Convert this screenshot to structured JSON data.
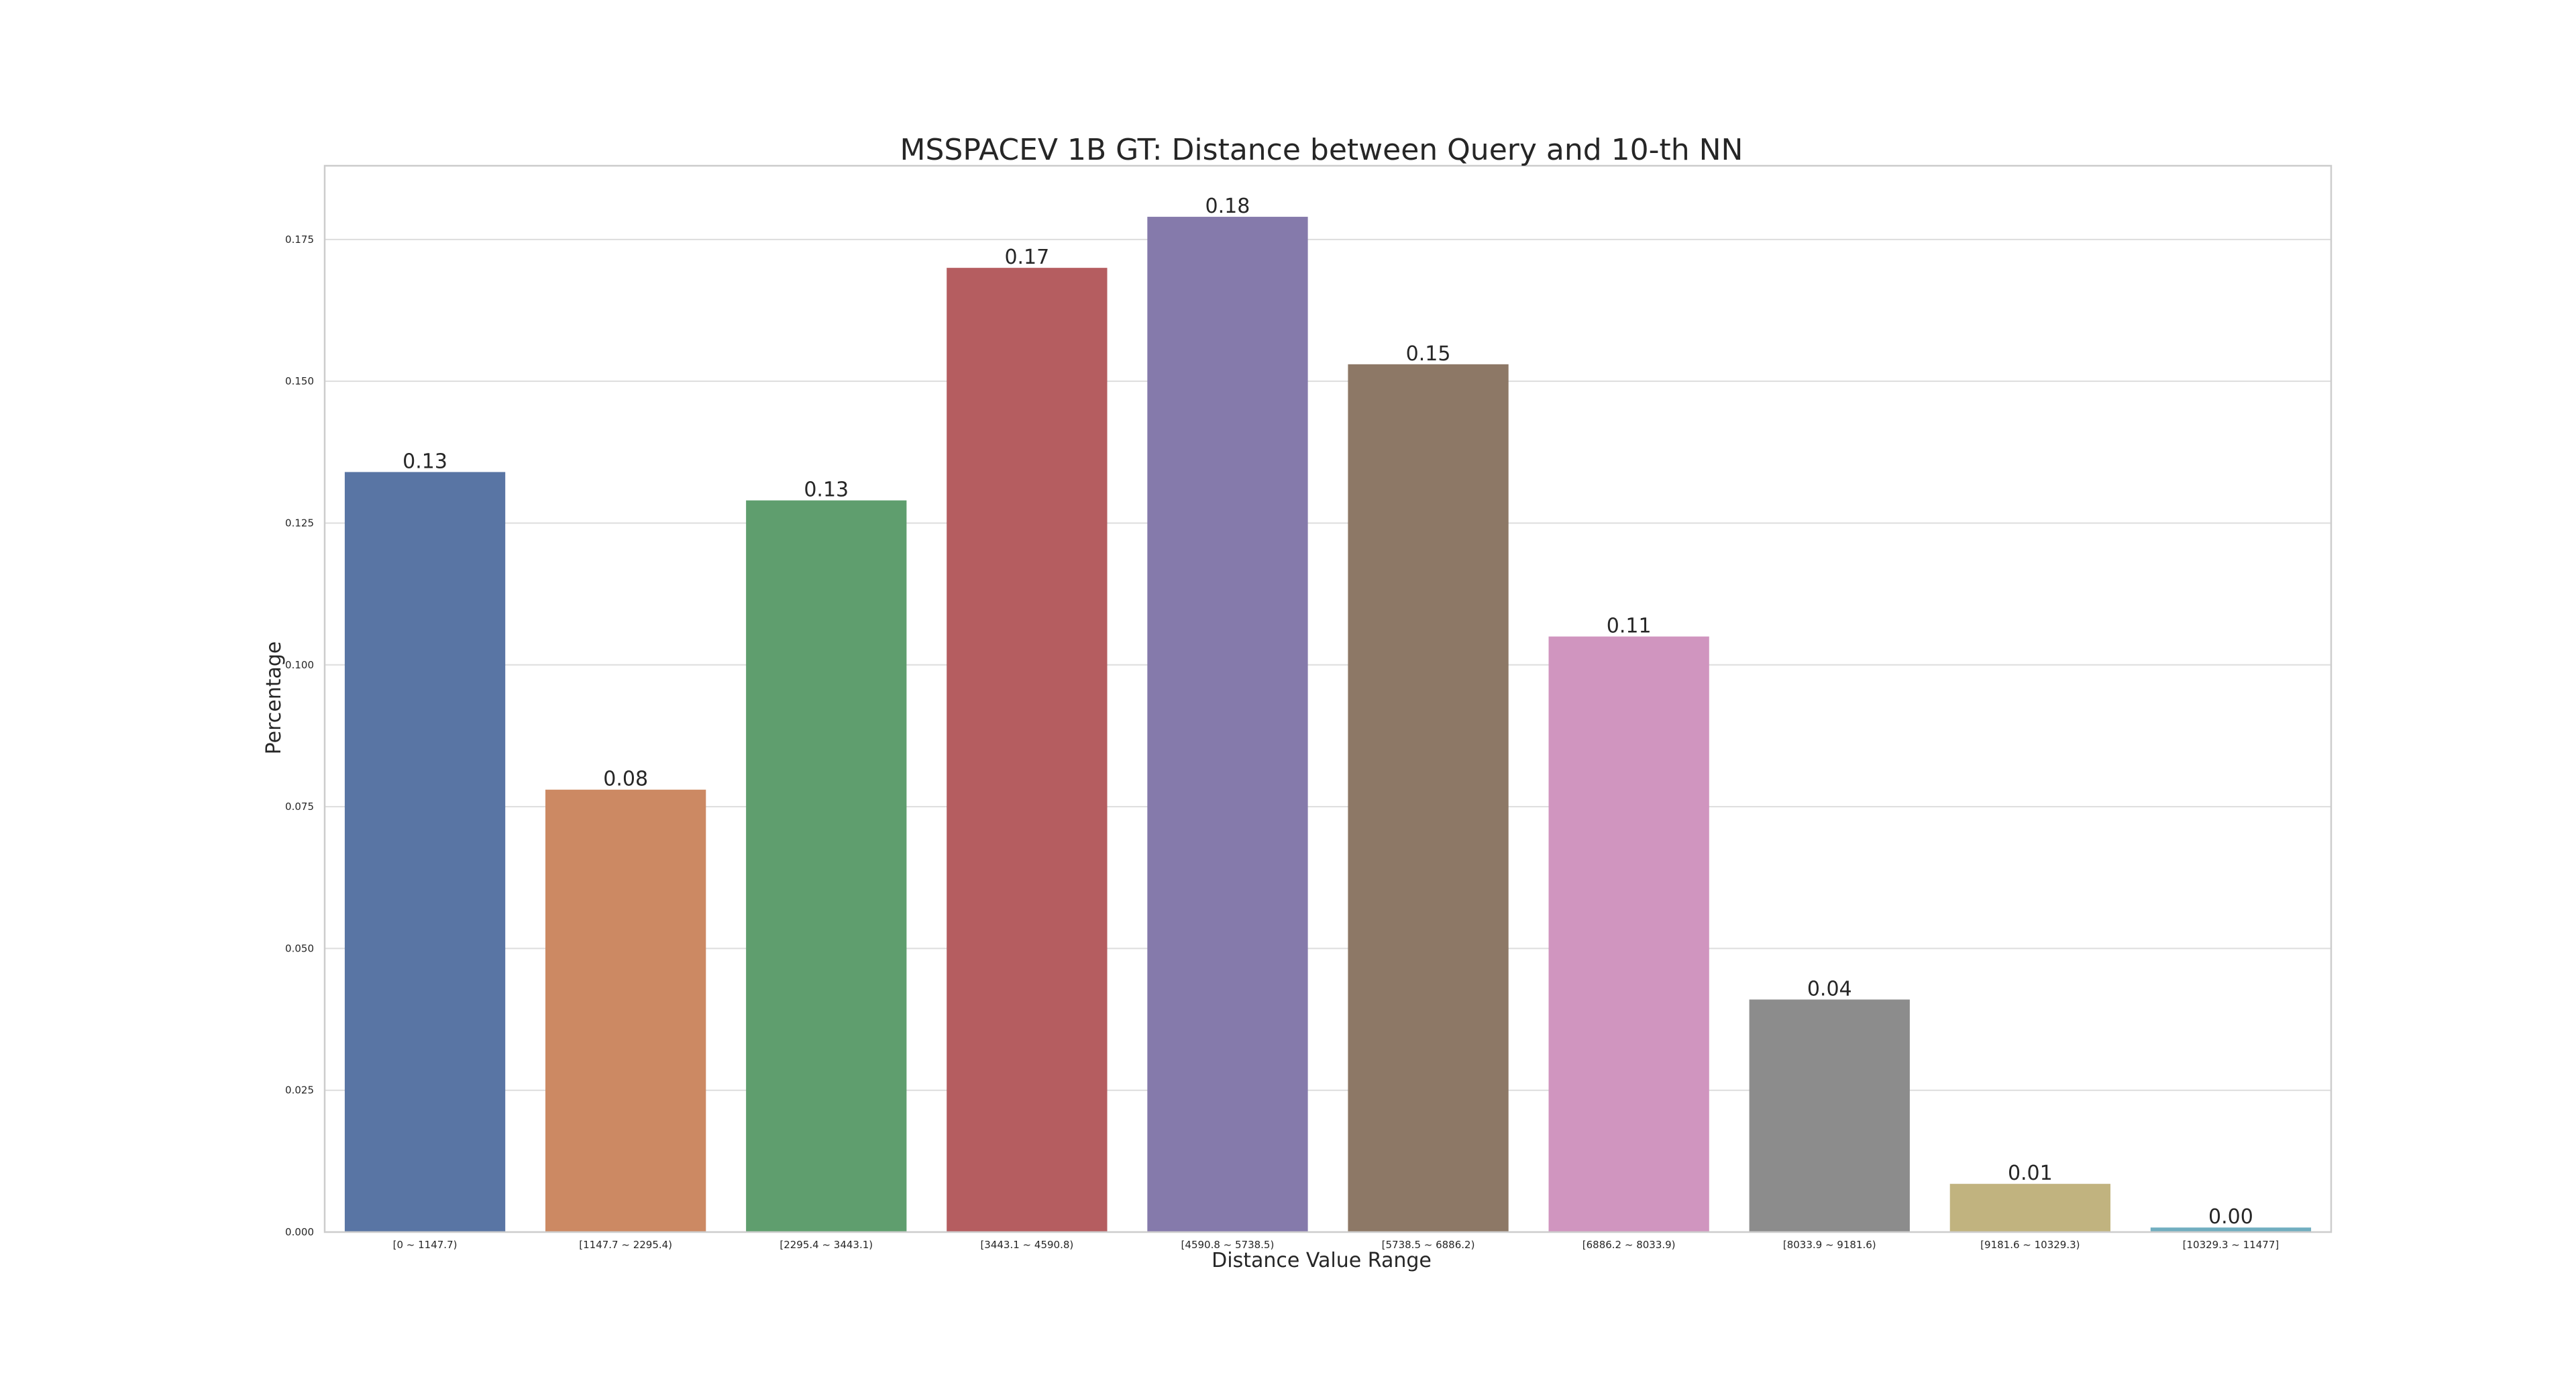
{
  "chart_data": {
    "type": "bar",
    "title": "MSSPACEV 1B GT: Distance between Query and 10-th NN",
    "xlabel": "Distance Value Range",
    "ylabel": "Percentage",
    "ylim": [
      0,
      0.188
    ],
    "yticks": [
      0.0,
      0.025,
      0.05,
      0.075,
      0.1,
      0.125,
      0.15,
      0.175
    ],
    "ytick_labels": [
      "0.000",
      "0.025",
      "0.050",
      "0.075",
      "0.100",
      "0.125",
      "0.150",
      "0.175"
    ],
    "grid": true,
    "categories": [
      "[0 ~ 1147.7)",
      "[1147.7 ~ 2295.4)",
      "[2295.4 ~ 3443.1)",
      "[3443.1 ~ 4590.8)",
      "[4590.8 ~ 5738.5)",
      "[5738.5 ~ 6886.2)",
      "[6886.2 ~ 8033.9)",
      "[8033.9 ~ 9181.6)",
      "[9181.6 ~ 10329.3)",
      "[10329.3 ~ 11477]"
    ],
    "values": [
      0.134,
      0.078,
      0.129,
      0.17,
      0.179,
      0.153,
      0.105,
      0.041,
      0.0085,
      0.0008
    ],
    "data_labels": [
      "0.13",
      "0.08",
      "0.13",
      "0.17",
      "0.18",
      "0.15",
      "0.11",
      "0.04",
      "0.01",
      "0.00"
    ],
    "colors": [
      "#5975a4",
      "#cc8963",
      "#5f9e6e",
      "#b55d60",
      "#857aab",
      "#8d7866",
      "#d095bf",
      "#8c8c8c",
      "#c1b37f",
      "#71aec0"
    ]
  }
}
